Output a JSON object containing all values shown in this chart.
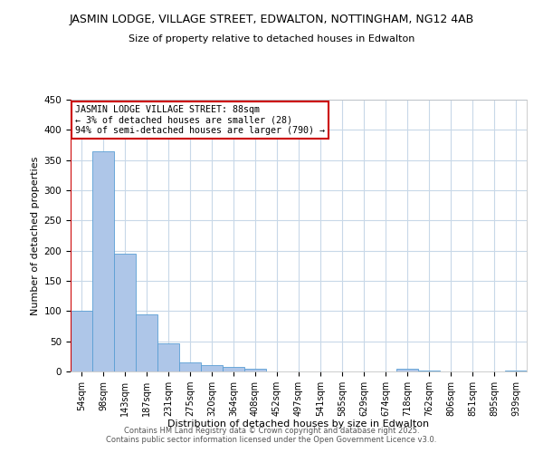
{
  "title_line1": "JASMIN LODGE, VILLAGE STREET, EDWALTON, NOTTINGHAM, NG12 4AB",
  "title_line2": "Size of property relative to detached houses in Edwalton",
  "xlabel": "Distribution of detached houses by size in Edwalton",
  "ylabel": "Number of detached properties",
  "bar_labels": [
    "54sqm",
    "98sqm",
    "143sqm",
    "187sqm",
    "231sqm",
    "275sqm",
    "320sqm",
    "364sqm",
    "408sqm",
    "452sqm",
    "497sqm",
    "541sqm",
    "585sqm",
    "629sqm",
    "674sqm",
    "718sqm",
    "762sqm",
    "806sqm",
    "851sqm",
    "895sqm",
    "939sqm"
  ],
  "bar_values": [
    100,
    365,
    195,
    95,
    46,
    15,
    10,
    8,
    5,
    0,
    0,
    0,
    0,
    0,
    0,
    4,
    1,
    0,
    0,
    0,
    1
  ],
  "bar_color": "#aec6e8",
  "bar_edge_color": "#5a9fd4",
  "annotation_title": "JASMIN LODGE VILLAGE STREET: 88sqm",
  "annotation_line1": "← 3% of detached houses are smaller (28)",
  "annotation_line2": "94% of semi-detached houses are larger (790) →",
  "ylim": [
    0,
    450
  ],
  "yticks": [
    0,
    50,
    100,
    150,
    200,
    250,
    300,
    350,
    400,
    450
  ],
  "red_line_color": "#cc0000",
  "annotation_box_edgecolor": "#cc0000",
  "background_color": "#ffffff",
  "grid_color": "#c8d8e8",
  "footer_line1": "Contains HM Land Registry data © Crown copyright and database right 2025.",
  "footer_line2": "Contains public sector information licensed under the Open Government Licence v3.0."
}
